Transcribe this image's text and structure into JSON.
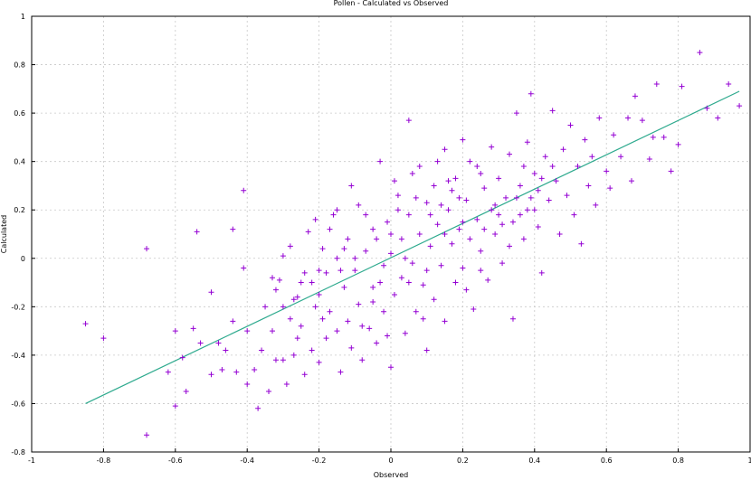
{
  "chart_data": {
    "type": "scatter",
    "title": "Pollen - Calculated vs Observed",
    "xlabel": "Observed",
    "ylabel": "Calculated",
    "xlim": [
      -1,
      1
    ],
    "ylim": [
      -0.8,
      1
    ],
    "xticks": [
      "-1",
      "-0.8",
      "-0.6",
      "-0.4",
      "-0.2",
      "0",
      "0.2",
      "0.4",
      "0.6",
      "0.8",
      "1"
    ],
    "yticks": [
      "-0.8",
      "-0.6",
      "-0.4",
      "-0.2",
      "0",
      "0.2",
      "0.4",
      "0.6",
      "0.8",
      "1"
    ],
    "grid": true,
    "point_color": "#9400d3",
    "line_color": "#2eaa8e",
    "fit_line": {
      "x": [
        -0.85,
        0.97
      ],
      "y": [
        -0.6,
        0.69
      ]
    },
    "points": [
      [
        -0.85,
        -0.27
      ],
      [
        -0.8,
        -0.33
      ],
      [
        -0.68,
        0.04
      ],
      [
        -0.68,
        -0.73
      ],
      [
        -0.62,
        -0.47
      ],
      [
        -0.6,
        -0.61
      ],
      [
        -0.6,
        -0.3
      ],
      [
        -0.58,
        -0.41
      ],
      [
        -0.57,
        -0.55
      ],
      [
        -0.55,
        -0.29
      ],
      [
        -0.54,
        0.11
      ],
      [
        -0.53,
        -0.35
      ],
      [
        -0.5,
        -0.14
      ],
      [
        -0.5,
        -0.48
      ],
      [
        -0.48,
        -0.35
      ],
      [
        -0.47,
        -0.46
      ],
      [
        -0.46,
        -0.38
      ],
      [
        -0.44,
        -0.26
      ],
      [
        -0.44,
        0.12
      ],
      [
        -0.43,
        -0.47
      ],
      [
        -0.41,
        0.28
      ],
      [
        -0.41,
        -0.04
      ],
      [
        -0.4,
        -0.52
      ],
      [
        -0.4,
        -0.3
      ],
      [
        -0.38,
        -0.46
      ],
      [
        -0.37,
        -0.62
      ],
      [
        -0.36,
        -0.38
      ],
      [
        -0.34,
        -0.55
      ],
      [
        -0.33,
        -0.3
      ],
      [
        -0.32,
        -0.13
      ],
      [
        -0.31,
        -0.09
      ],
      [
        -0.3,
        -0.42
      ],
      [
        -0.3,
        0.01
      ],
      [
        -0.29,
        -0.52
      ],
      [
        -0.28,
        -0.25
      ],
      [
        -0.27,
        -0.4
      ],
      [
        -0.26,
        -0.16
      ],
      [
        -0.25,
        -0.28
      ],
      [
        -0.24,
        -0.06
      ],
      [
        -0.23,
        0.11
      ],
      [
        -0.22,
        -0.38
      ],
      [
        -0.21,
        -0.2
      ],
      [
        -0.2,
        -0.43
      ],
      [
        -0.2,
        -0.05
      ],
      [
        -0.19,
        0.04
      ],
      [
        -0.18,
        -0.33
      ],
      [
        -0.17,
        -0.22
      ],
      [
        -0.16,
        0.18
      ],
      [
        -0.15,
        -0.3
      ],
      [
        -0.15,
        0.0
      ],
      [
        -0.14,
        -0.47
      ],
      [
        -0.13,
        -0.12
      ],
      [
        -0.12,
        0.08
      ],
      [
        -0.12,
        -0.26
      ],
      [
        -0.11,
        -0.37
      ],
      [
        -0.1,
        -0.05
      ],
      [
        -0.09,
        0.22
      ],
      [
        -0.09,
        -0.19
      ],
      [
        -0.08,
        -0.42
      ],
      [
        -0.07,
        0.03
      ],
      [
        -0.06,
        -0.29
      ],
      [
        -0.05,
        0.12
      ],
      [
        -0.05,
        -0.12
      ],
      [
        -0.04,
        -0.35
      ],
      [
        -0.03,
        0.4
      ],
      [
        -0.02,
        -0.03
      ],
      [
        -0.02,
        -0.22
      ],
      [
        -0.01,
        0.15
      ],
      [
        0.0,
        -0.45
      ],
      [
        0.0,
        0.02
      ],
      [
        0.01,
        -0.15
      ],
      [
        0.02,
        0.26
      ],
      [
        0.03,
        -0.08
      ],
      [
        0.03,
        0.08
      ],
      [
        0.04,
        -0.31
      ],
      [
        0.05,
        0.57
      ],
      [
        0.05,
        0.18
      ],
      [
        0.06,
        -0.02
      ],
      [
        0.07,
        -0.22
      ],
      [
        0.08,
        0.1
      ],
      [
        0.08,
        0.38
      ],
      [
        0.09,
        -0.11
      ],
      [
        0.1,
        0.23
      ],
      [
        0.1,
        -0.38
      ],
      [
        0.11,
        0.05
      ],
      [
        0.12,
        0.3
      ],
      [
        0.12,
        -0.17
      ],
      [
        0.13,
        0.14
      ],
      [
        0.14,
        -0.03
      ],
      [
        0.15,
        0.45
      ],
      [
        0.15,
        -0.26
      ],
      [
        0.16,
        0.2
      ],
      [
        0.17,
        0.06
      ],
      [
        0.18,
        -0.1
      ],
      [
        0.18,
        0.33
      ],
      [
        0.19,
        0.12
      ],
      [
        0.2,
        0.49
      ],
      [
        0.2,
        -0.04
      ],
      [
        0.21,
        0.24
      ],
      [
        0.22,
        0.08
      ],
      [
        0.23,
        -0.21
      ],
      [
        0.24,
        0.38
      ],
      [
        0.24,
        0.16
      ],
      [
        0.25,
        0.03
      ],
      [
        0.26,
        0.29
      ],
      [
        0.27,
        -0.09
      ],
      [
        0.28,
        0.46
      ],
      [
        0.28,
        0.2
      ],
      [
        0.29,
        0.1
      ],
      [
        0.3,
        0.33
      ],
      [
        0.31,
        -0.02
      ],
      [
        0.32,
        0.25
      ],
      [
        0.33,
        0.43
      ],
      [
        0.34,
        0.15
      ],
      [
        0.34,
        -0.25
      ],
      [
        0.35,
        0.6
      ],
      [
        0.36,
        0.3
      ],
      [
        0.37,
        0.08
      ],
      [
        0.38,
        0.48
      ],
      [
        0.38,
        0.2
      ],
      [
        0.39,
        0.68
      ],
      [
        0.4,
        0.35
      ],
      [
        0.41,
        0.13
      ],
      [
        0.42,
        -0.06
      ],
      [
        0.43,
        0.42
      ],
      [
        0.44,
        0.24
      ],
      [
        0.45,
        0.61
      ],
      [
        0.46,
        0.32
      ],
      [
        0.47,
        0.1
      ],
      [
        0.48,
        0.45
      ],
      [
        0.49,
        0.26
      ],
      [
        0.5,
        0.55
      ],
      [
        0.51,
        0.18
      ],
      [
        0.52,
        0.38
      ],
      [
        0.53,
        0.06
      ],
      [
        0.54,
        0.49
      ],
      [
        0.55,
        0.3
      ],
      [
        0.56,
        0.42
      ],
      [
        0.57,
        0.22
      ],
      [
        0.58,
        0.58
      ],
      [
        0.6,
        0.36
      ],
      [
        0.61,
        0.29
      ],
      [
        0.62,
        0.51
      ],
      [
        0.64,
        0.42
      ],
      [
        0.66,
        0.58
      ],
      [
        0.67,
        0.32
      ],
      [
        0.68,
        0.67
      ],
      [
        0.7,
        0.57
      ],
      [
        0.72,
        0.41
      ],
      [
        0.74,
        0.72
      ],
      [
        0.76,
        0.5
      ],
      [
        0.78,
        0.36
      ],
      [
        0.8,
        0.47
      ],
      [
        0.81,
        0.71
      ],
      [
        0.86,
        0.85
      ],
      [
        0.88,
        0.62
      ],
      [
        0.91,
        0.58
      ],
      [
        0.94,
        0.72
      ],
      [
        0.97,
        0.63
      ],
      [
        0.73,
        0.5
      ],
      [
        -0.35,
        -0.2
      ],
      [
        -0.32,
        -0.42
      ],
      [
        -0.28,
        0.05
      ],
      [
        -0.26,
        -0.33
      ],
      [
        -0.24,
        -0.48
      ],
      [
        -0.22,
        -0.1
      ],
      [
        -0.19,
        -0.25
      ],
      [
        -0.17,
        0.12
      ],
      [
        -0.14,
        -0.05
      ],
      [
        -0.11,
        0.3
      ],
      [
        -0.08,
        -0.28
      ],
      [
        -0.04,
        0.08
      ],
      [
        -0.01,
        -0.32
      ],
      [
        0.02,
        0.2
      ],
      [
        0.06,
        0.35
      ],
      [
        0.09,
        -0.25
      ],
      [
        0.13,
        0.4
      ],
      [
        0.17,
        0.28
      ],
      [
        0.21,
        -0.13
      ],
      [
        0.25,
        0.35
      ],
      [
        0.29,
        0.22
      ],
      [
        0.33,
        0.05
      ],
      [
        0.37,
        0.38
      ],
      [
        0.41,
        0.28
      ],
      [
        0.45,
        0.38
      ],
      [
        -0.3,
        -0.2
      ],
      [
        -0.2,
        -0.15
      ],
      [
        -0.1,
        0.0
      ],
      [
        0.0,
        0.1
      ],
      [
        0.1,
        -0.05
      ],
      [
        0.2,
        0.15
      ],
      [
        0.3,
        0.18
      ],
      [
        0.4,
        0.2
      ],
      [
        -0.15,
        0.2
      ],
      [
        -0.05,
        -0.18
      ],
      [
        0.05,
        -0.1
      ],
      [
        0.15,
        0.1
      ],
      [
        0.25,
        -0.05
      ],
      [
        0.35,
        0.25
      ],
      [
        -0.25,
        -0.1
      ],
      [
        -0.33,
        -0.08
      ],
      [
        -0.27,
        -0.17
      ],
      [
        -0.21,
        0.16
      ],
      [
        -0.18,
        -0.06
      ],
      [
        -0.13,
        0.04
      ],
      [
        -0.07,
        0.18
      ],
      [
        -0.03,
        -0.1
      ],
      [
        0.01,
        0.32
      ],
      [
        0.04,
        0.0
      ],
      [
        0.07,
        0.25
      ],
      [
        0.11,
        0.18
      ],
      [
        0.14,
        0.22
      ],
      [
        0.16,
        0.32
      ],
      [
        0.19,
        0.25
      ],
      [
        0.22,
        0.4
      ],
      [
        0.26,
        0.12
      ],
      [
        0.31,
        0.14
      ],
      [
        0.36,
        0.18
      ],
      [
        0.39,
        0.25
      ],
      [
        0.42,
        0.33
      ]
    ]
  }
}
